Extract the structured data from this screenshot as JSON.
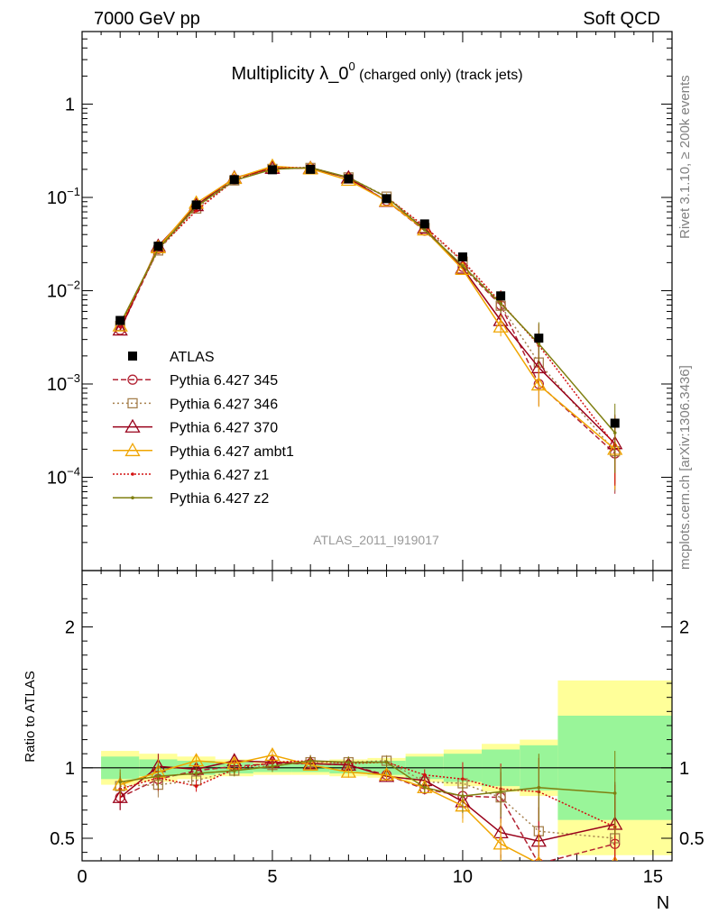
{
  "header": {
    "left": "7000 GeV pp",
    "right": "Soft QCD"
  },
  "side_labels": {
    "rivet": "Rivet 3.1.10, ≥ 200k events",
    "mcplots": "mcplots.cern.ch [arXiv:1306.3436]"
  },
  "analysis_id": "ATLAS_2011_I919017",
  "colors": {
    "atlas": "#000000",
    "p345": "#b22233",
    "p346": "#a6804d",
    "p370": "#99001a",
    "ambt1": "#f0a500",
    "z1": "#d41010",
    "z2": "#7f7f10",
    "band_inner": "#99f599",
    "band_outer": "#ffff99"
  },
  "chart_data": [
    {
      "type": "line",
      "title": "Multiplicity λ_0⁰ (charged only) (track jets)",
      "title_main": "Multiplicity λ_0",
      "title_sup": "0",
      "title_tail": "(charged only) (track jets)",
      "y_scale": "log",
      "ylim": [
        1e-05,
        6
      ],
      "y_ticks": [
        {
          "value": 0.0001,
          "base": "10",
          "exp": "−4"
        },
        {
          "value": 0.001,
          "base": "10",
          "exp": "−3"
        },
        {
          "value": 0.01,
          "base": "10",
          "exp": "−2"
        },
        {
          "value": 0.1,
          "base": "10",
          "exp": "−1"
        },
        {
          "value": 1,
          "base": "1",
          "exp": ""
        }
      ],
      "xlim": [
        0,
        15.5
      ],
      "x": [
        1,
        2,
        3,
        4,
        5,
        6,
        7,
        8,
        9,
        10,
        11,
        12,
        14
      ],
      "legend_position": "lower-left",
      "series": [
        {
          "key": "atlas",
          "name": "ATLAS",
          "marker": "square-filled",
          "dash": "",
          "values": [
            0.0048,
            0.03,
            0.083,
            0.155,
            0.198,
            0.2,
            0.158,
            0.097,
            0.052,
            0.023,
            0.0088,
            0.0031,
            0.00038
          ]
        },
        {
          "key": "p345",
          "name": "Pythia 6.427 345",
          "marker": "circle",
          "dash": "6,3",
          "values": [
            0.0038,
            0.028,
            0.079,
            0.156,
            0.204,
            0.206,
            0.162,
            0.092,
            0.044,
            0.018,
            0.007,
            0.001,
            0.00018
          ]
        },
        {
          "key": "p346",
          "name": "Pythia 6.427 346",
          "marker": "square",
          "dash": "2,3",
          "values": [
            0.0042,
            0.027,
            0.076,
            0.152,
            0.202,
            0.207,
            0.164,
            0.102,
            0.047,
            0.0205,
            0.0069,
            0.0017,
            0.00019
          ]
        },
        {
          "key": "p370",
          "name": "Pythia 6.427 370",
          "marker": "triangle",
          "dash": "",
          "values": [
            0.0038,
            0.03,
            0.082,
            0.162,
            0.206,
            0.205,
            0.162,
            0.091,
            0.047,
            0.0175,
            0.0048,
            0.0015,
            0.00023
          ]
        },
        {
          "key": "ambt1",
          "name": "Pythia 6.427 ambt1",
          "marker": "triangle",
          "dash": "",
          "values": [
            0.0042,
            0.029,
            0.087,
            0.16,
            0.216,
            0.203,
            0.153,
            0.092,
            0.045,
            0.017,
            0.0041,
            0.00098,
            0.0002
          ]
        },
        {
          "key": "z1",
          "name": "Pythia 6.427 z1",
          "marker": "dot",
          "dash": "2,2",
          "values": [
            0.0041,
            0.028,
            0.072,
            0.153,
            0.206,
            0.21,
            0.162,
            0.101,
            0.049,
            0.021,
            0.0075,
            0.0026,
            0.00022
          ]
        },
        {
          "key": "z2",
          "name": "Pythia 6.427 z2",
          "marker": "dot",
          "dash": "",
          "values": [
            0.0044,
            0.028,
            0.08,
            0.152,
            0.2,
            0.209,
            0.164,
            0.101,
            0.045,
            0.0185,
            0.0073,
            0.0027,
            0.0003
          ]
        }
      ]
    },
    {
      "type": "line",
      "ylabel": "Ratio to ATLAS",
      "xlabel": "N",
      "ylim": [
        0.34,
        2.4
      ],
      "xlim": [
        0,
        15.5
      ],
      "x_ticks": [
        0,
        5,
        10,
        15
      ],
      "y_ticks": [
        0.5,
        1,
        2
      ],
      "reference": 1,
      "band_edges": [
        0.5,
        1.5,
        2.5,
        3.5,
        4.5,
        5.5,
        6.5,
        7.5,
        8.5,
        9.5,
        10.5,
        11.5,
        12.5,
        15.5
      ],
      "band_inner": [
        0.08,
        0.06,
        0.05,
        0.04,
        0.03,
        0.03,
        0.04,
        0.05,
        0.08,
        0.1,
        0.13,
        0.16,
        0.37
      ],
      "band_outer": [
        0.12,
        0.1,
        0.08,
        0.06,
        0.05,
        0.05,
        0.06,
        0.07,
        0.1,
        0.13,
        0.17,
        0.2,
        0.62
      ],
      "x": [
        1,
        2,
        3,
        4,
        5,
        6,
        7,
        8,
        9,
        10,
        11,
        12,
        14
      ],
      "series": [
        {
          "key": "p345",
          "values": [
            0.79,
            0.92,
            0.98,
            1.01,
            1.03,
            1.03,
            1.02,
            0.95,
            0.85,
            0.8,
            0.79,
            0.32,
            0.46
          ]
        },
        {
          "key": "p346",
          "values": [
            0.87,
            0.88,
            0.91,
            0.98,
            1.02,
            1.04,
            1.04,
            1.05,
            0.9,
            0.89,
            0.79,
            0.55,
            0.5
          ]
        },
        {
          "key": "p370",
          "values": [
            0.79,
            1.01,
            0.99,
            1.05,
            1.04,
            1.03,
            1.02,
            0.94,
            0.91,
            0.76,
            0.54,
            0.48,
            0.6
          ]
        },
        {
          "key": "ambt1",
          "values": [
            0.88,
            0.97,
            1.05,
            1.03,
            1.09,
            1.02,
            0.97,
            0.95,
            0.86,
            0.73,
            0.46,
            0.32,
            0.32
          ]
        },
        {
          "key": "z1",
          "values": [
            0.85,
            0.93,
            0.87,
            0.99,
            1.04,
            1.05,
            1.03,
            1.04,
            0.95,
            0.92,
            0.85,
            0.83,
            0.58
          ]
        },
        {
          "key": "z2",
          "values": [
            0.9,
            0.94,
            0.96,
            0.98,
            1.01,
            1.05,
            1.04,
            1.04,
            0.86,
            0.8,
            0.83,
            0.86,
            0.82
          ]
        }
      ]
    }
  ]
}
